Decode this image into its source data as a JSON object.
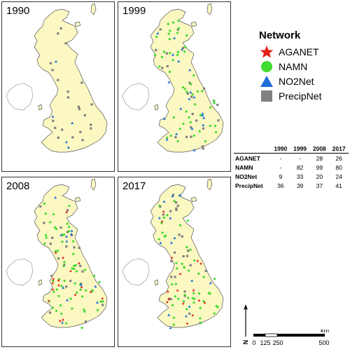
{
  "panels": [
    {
      "label": "1990",
      "networks": {
        "PrecipNet": 36,
        "NO2Net": 9
      }
    },
    {
      "label": "1999",
      "networks": {
        "PrecipNet": 39,
        "NAMN": 82,
        "NO2Net": 33
      }
    },
    {
      "label": "2008",
      "networks": {
        "PrecipNet": 37,
        "NAMN": 99,
        "NO2Net": 20,
        "AGANET": 28
      }
    },
    {
      "label": "2017",
      "networks": {
        "PrecipNet": 41,
        "NAMN": 80,
        "NO2Net": 24,
        "AGANET": 26
      }
    }
  ],
  "legend": {
    "title": "Network",
    "items": [
      {
        "label": "AGANET",
        "icon": "red-star-icon",
        "color": "#e52118"
      },
      {
        "label": "NAMN",
        "icon": "green-circle-icon",
        "color": "#3fdb2f"
      },
      {
        "label": "NO2Net",
        "icon": "blue-triangle-icon",
        "color": "#1f6fd8"
      },
      {
        "label": "PrecipNet",
        "icon": "grey-square-icon",
        "color": "#808080"
      }
    ]
  },
  "table": {
    "headers": [
      "",
      "1990",
      "1999",
      "2008",
      "2017"
    ],
    "rows": [
      [
        "AGANET",
        "-",
        "-",
        "28",
        "26"
      ],
      [
        "NAMN",
        "-",
        "82",
        "99",
        "80"
      ],
      [
        "NO2Net",
        "9",
        "33",
        "20",
        "24"
      ],
      [
        "PrecipNet",
        "36",
        "39",
        "37",
        "41"
      ]
    ]
  },
  "scale": {
    "ticks": [
      "0",
      "125",
      "250",
      "500"
    ],
    "unit": "km"
  },
  "north_label": "N",
  "colors": {
    "land": "#fbf8c2",
    "coast": "#555555",
    "ireland": "#ffffff"
  }
}
